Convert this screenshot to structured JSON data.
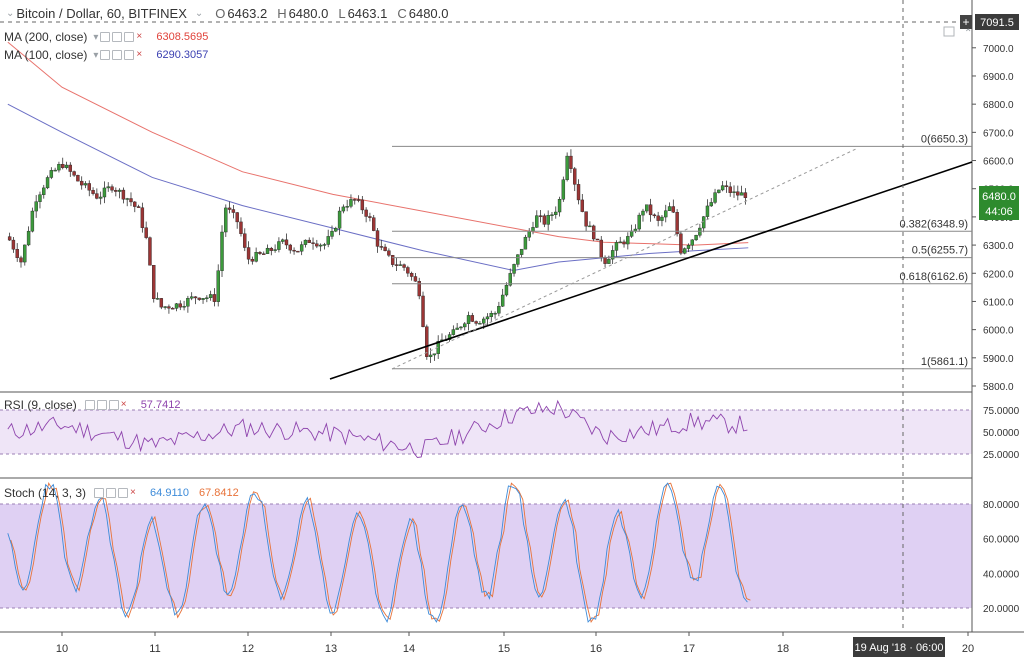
{
  "header": {
    "symbol": "Bitcoin / Dollar, 60, BITFINEX",
    "open_label": "O",
    "open": "6463.2",
    "high_label": "H",
    "high": "6480.0",
    "low_label": "L",
    "low": "6463.1",
    "close_label": "C",
    "close": "6480.0",
    "crosshair_price": "7091.5"
  },
  "indicators": {
    "ma200": {
      "label": "MA (200, close)",
      "value": "6308.5695",
      "color": "#e0433b"
    },
    "ma100": {
      "label": "MA (100, close)",
      "value": "6290.3057",
      "color": "#3a3fb1"
    },
    "rsi": {
      "label": "RSI (9, close)",
      "value": "57.7412",
      "color": "#8e44ad"
    },
    "stoch": {
      "label": "Stoch (14, 3, 3)",
      "k_value": "64.9110",
      "d_value": "67.8412",
      "k_color": "#3d8bd9",
      "d_color": "#e8733a"
    }
  },
  "price_axis": {
    "labels": [
      "7000.0",
      "6900.0",
      "6800.0",
      "6700.0",
      "6600.0",
      "6500.0",
      "6400.0",
      "6300.0",
      "6200.0",
      "6100.0",
      "6000.0",
      "5900.0",
      "5800.0"
    ],
    "last_price": "6480.0",
    "countdown": "44:06"
  },
  "rsi_axis": {
    "labels": [
      "75.0000",
      "50.0000",
      "25.0000"
    ]
  },
  "stoch_axis": {
    "labels": [
      "80.0000",
      "60.0000",
      "40.0000",
      "20.0000"
    ]
  },
  "time_axis": {
    "labels": [
      "10",
      "11",
      "12",
      "13",
      "14",
      "15",
      "16",
      "17",
      "18",
      "20"
    ],
    "crosshair_time": "19 Aug '18 · 06:00"
  },
  "fibonacci": [
    {
      "label": "0(6650.3)",
      "price": 6650.3
    },
    {
      "label": "0.382(6348.9)",
      "price": 6348.9
    },
    {
      "label": "0.5(6255.7)",
      "price": 6255.7
    },
    {
      "label": "0.618(6162.6)",
      "price": 6162.6
    },
    {
      "label": "1(5861.1)",
      "price": 5861.1
    }
  ],
  "colors": {
    "up": "#3c9a3c",
    "down": "#9b3535",
    "fib": "#888888",
    "trend": "#000000"
  },
  "chart_data": {
    "type": "line",
    "title": "Bitcoin / Dollar, 60, BITFINEX",
    "ylim": [
      5800,
      7050
    ],
    "series": [
      {
        "name": "MA (200, close)",
        "x": [
          9.4,
          10,
          11,
          12,
          13,
          14,
          15,
          15.5,
          16,
          16.5,
          17,
          17.6
        ],
        "values": [
          7020,
          6860,
          6700,
          6560,
          6480,
          6420,
          6360,
          6330,
          6310,
          6305,
          6300,
          6308.6
        ]
      },
      {
        "name": "MA (100, close)",
        "x": [
          9.4,
          10,
          11,
          12,
          13,
          14,
          15,
          15.5,
          16,
          16.5,
          17,
          17.6
        ],
        "values": [
          6800,
          6700,
          6540,
          6440,
          6360,
          6280,
          6210,
          6240,
          6255,
          6270,
          6280,
          6290.3
        ]
      }
    ],
    "rsi": {
      "x": [
        9.4,
        10,
        11,
        12,
        13,
        14,
        15,
        15.5,
        16,
        16.5,
        17,
        17.6
      ],
      "values": [
        50,
        58,
        35,
        55,
        48,
        30,
        70,
        78,
        45,
        52,
        62,
        57.7
      ]
    },
    "stoch": {
      "x": [
        9.4,
        10,
        11,
        12,
        13,
        14,
        15,
        15.5,
        16,
        16.5,
        17,
        17.6
      ],
      "k": [
        70,
        85,
        22,
        75,
        45,
        20,
        85,
        60,
        18,
        85,
        88,
        64.9
      ],
      "d": [
        70,
        82,
        25,
        72,
        48,
        22,
        82,
        62,
        20,
        82,
        87,
        67.8
      ]
    }
  }
}
